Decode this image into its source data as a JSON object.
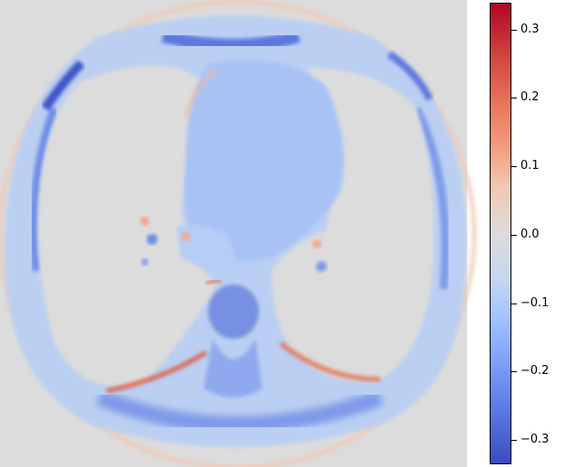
{
  "image": {
    "colormap": "coolwarm",
    "background_color": "#dcdcdc"
  },
  "colorbar": {
    "vmin": -0.34,
    "vmax": 0.34,
    "ticks": [
      {
        "value": 0.3,
        "label": "0.3"
      },
      {
        "value": 0.2,
        "label": "0.2"
      },
      {
        "value": 0.1,
        "label": "0.1"
      },
      {
        "value": 0.0,
        "label": "0.0"
      },
      {
        "value": -0.1,
        "label": "−0.1"
      },
      {
        "value": -0.2,
        "label": "−0.2"
      },
      {
        "value": -0.3,
        "label": "−0.3"
      }
    ]
  }
}
